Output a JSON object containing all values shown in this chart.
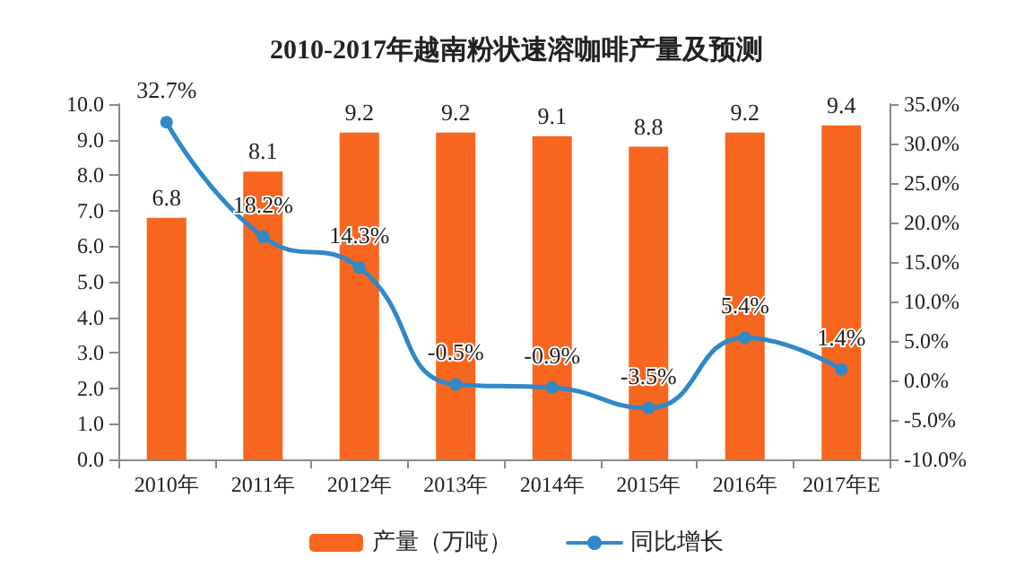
{
  "chart_data": {
    "type": "bar",
    "title": "2010-2017年越南粉状速溶咖啡产量及预测",
    "categories": [
      "2010年",
      "2011年",
      "2012年",
      "2013年",
      "2014年",
      "2015年",
      "2016年",
      "2017年E"
    ],
    "series": [
      {
        "name": "产量（万吨）",
        "color": "#f7661e",
        "values": [
          6.8,
          8.1,
          9.2,
          9.2,
          9.1,
          8.8,
          9.2,
          9.4
        ],
        "value_labels": [
          "6.8",
          "8.1",
          "9.2",
          "9.2",
          "9.1",
          "8.8",
          "9.2",
          "9.4"
        ]
      },
      {
        "name": "同比增长",
        "type": "line",
        "axis": "y2",
        "color": "#2f88c8",
        "values": [
          32.7,
          18.2,
          14.3,
          -0.5,
          -0.9,
          -3.5,
          5.4,
          1.4
        ],
        "value_labels": [
          "32.7%",
          "18.2%",
          "14.3%",
          "-0.5%",
          "-0.9%",
          "-3.5%",
          "5.4%",
          "1.4%"
        ]
      }
    ],
    "ylim": [
      0,
      10
    ],
    "yticks": [
      {
        "value": 0,
        "label": "0.0"
      },
      {
        "value": 1,
        "label": "1.0"
      },
      {
        "value": 2,
        "label": "2.0"
      },
      {
        "value": 3,
        "label": "3.0"
      },
      {
        "value": 4,
        "label": "4.0"
      },
      {
        "value": 5,
        "label": "5.0"
      },
      {
        "value": 6,
        "label": "6.0"
      },
      {
        "value": 7,
        "label": "7.0"
      },
      {
        "value": 8,
        "label": "8.0"
      },
      {
        "value": 9,
        "label": "9.0"
      },
      {
        "value": 10,
        "label": "10.0"
      }
    ],
    "y2lim": [
      -10,
      35
    ],
    "y2ticks": [
      {
        "value": -10,
        "label": "-10.0%"
      },
      {
        "value": -5,
        "label": "-5.0%"
      },
      {
        "value": 0,
        "label": "0.0%"
      },
      {
        "value": 5,
        "label": "5.0%"
      },
      {
        "value": 10,
        "label": "10.0%"
      },
      {
        "value": 15,
        "label": "15.0%"
      },
      {
        "value": 20,
        "label": "20.0%"
      },
      {
        "value": 25,
        "label": "25.0%"
      },
      {
        "value": 30,
        "label": "30.0%"
      },
      {
        "value": 35,
        "label": "35.0%"
      }
    ],
    "grid": false,
    "legend": "bottom",
    "marker": "circle",
    "line_style": "solid"
  }
}
